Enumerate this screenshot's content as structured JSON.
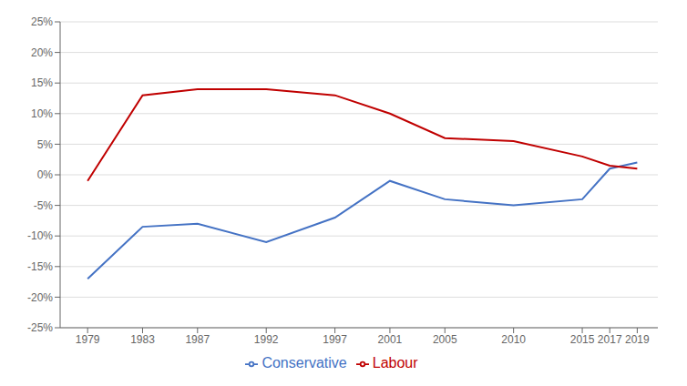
{
  "chart_data": {
    "type": "line",
    "x": [
      1979,
      1983,
      1987,
      1992,
      1997,
      2001,
      2005,
      2010,
      2015,
      2017,
      2019
    ],
    "series": [
      {
        "name": "Conservative",
        "color": "#4472C4",
        "values": [
          -17,
          -8.5,
          -8,
          -11,
          -7,
          -1,
          -4,
          -5,
          -4,
          1,
          2
        ]
      },
      {
        "name": "Labour",
        "color": "#C00000",
        "values": [
          -1,
          13,
          14,
          14,
          13,
          10,
          6,
          5.5,
          3,
          1.5,
          1
        ]
      }
    ],
    "xlim": [
      1977,
      2020.5
    ],
    "xticks": [
      1979,
      1983,
      1987,
      1992,
      1997,
      2001,
      2005,
      2010,
      2015,
      2017,
      2019
    ],
    "ylim": [
      -25,
      25
    ],
    "yticks": [
      {
        "value": -25,
        "label": "-25%"
      },
      {
        "value": -20,
        "label": "-20%"
      },
      {
        "value": -15,
        "label": "-15%"
      },
      {
        "value": -10,
        "label": "-10%"
      },
      {
        "value": -5,
        "label": "-5%"
      },
      {
        "value": 0,
        "label": "0%"
      },
      {
        "value": 5,
        "label": "5%"
      },
      {
        "value": 10,
        "label": "10%"
      },
      {
        "value": 15,
        "label": "15%"
      },
      {
        "value": 20,
        "label": "20%"
      },
      {
        "value": 25,
        "label": "25%"
      }
    ],
    "grid": true,
    "legend": "bottom"
  }
}
